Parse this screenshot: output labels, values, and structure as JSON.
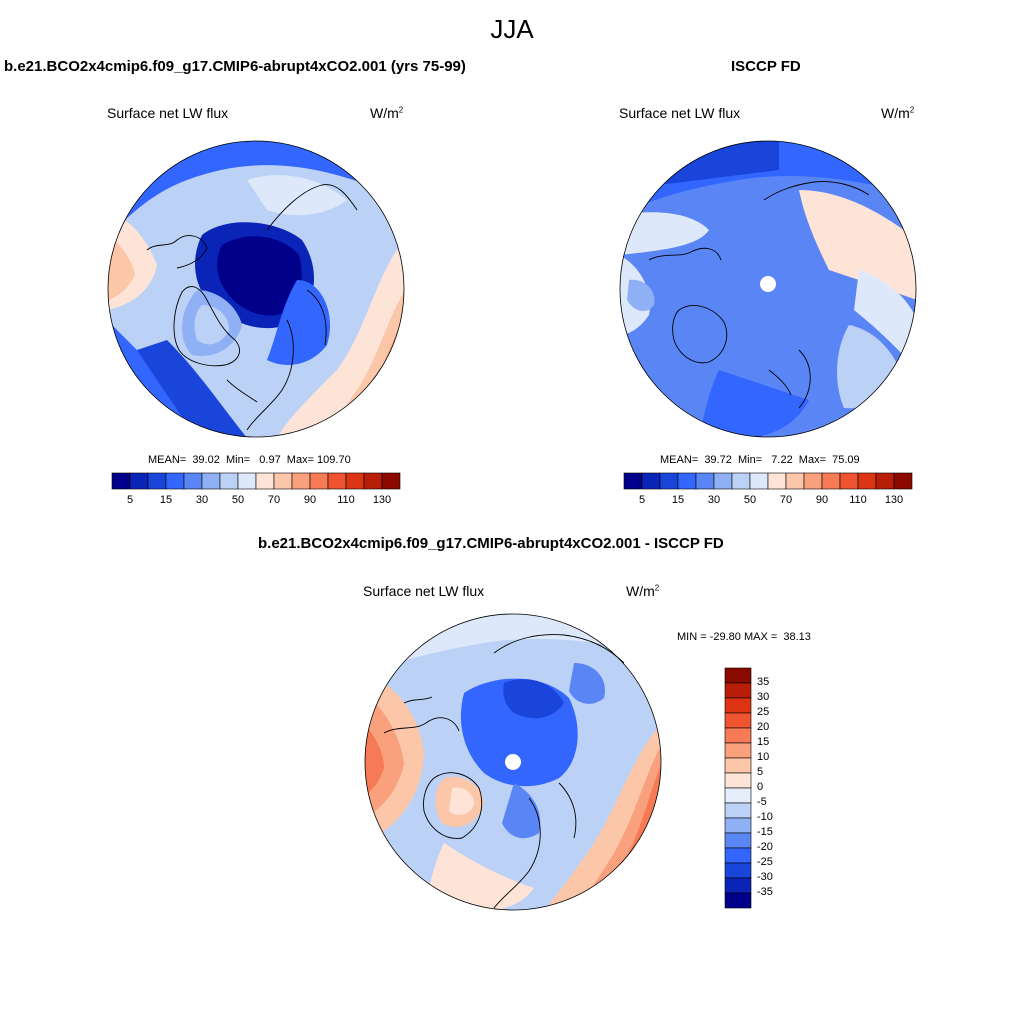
{
  "title": "JJA",
  "panels": [
    {
      "id": "model",
      "title": "b.e21.BCO2x4cmip6.f09_g17.CMIP6-abrupt4xCO2.001 (yrs 75-99)",
      "variable": "Surface net LW flux",
      "units_base": "W/m",
      "units_sup": "2",
      "stats_text": "MEAN=  39.02  Min=   0.97  Max= 109.70",
      "stats": {
        "mean": 39.02,
        "min": 0.97,
        "max": 109.7
      }
    },
    {
      "id": "obs",
      "title": "ISCCP FD",
      "variable": "Surface net LW flux",
      "units_base": "W/m",
      "units_sup": "2",
      "stats_text": "MEAN=  39.72  Min=   7.22  Max=  75.09",
      "stats": {
        "mean": 39.72,
        "min": 7.22,
        "max": 75.09
      }
    },
    {
      "id": "diff",
      "title": "b.e21.BCO2x4cmip6.f09_g17.CMIP6-abrupt4xCO2.001 - ISCCP FD",
      "variable": "Surface net LW flux",
      "units_base": "W/m",
      "units_sup": "2",
      "stats_text": "MIN = -29.80 MAX =  38.13",
      "stats": {
        "min": -29.8,
        "max": 38.13
      }
    }
  ],
  "colorbar_abs": {
    "colors": [
      "#00008b",
      "#0b24b8",
      "#1a45db",
      "#3366ff",
      "#5a86f5",
      "#8fb0f5",
      "#bcd1f6",
      "#dde9fa",
      "#fde4d6",
      "#fcc6a8",
      "#f9a07c",
      "#f57a55",
      "#ef5330",
      "#dd3514",
      "#b81d08",
      "#8b0a00"
    ],
    "tick_labels": [
      "5",
      "15",
      "30",
      "50",
      "70",
      "90",
      "110",
      "130"
    ]
  },
  "colorbar_diff": {
    "colors": [
      "#8b0a00",
      "#b81d08",
      "#dd3514",
      "#ef5330",
      "#f57a55",
      "#f9a07c",
      "#fcc6a8",
      "#fde4d6",
      "#e6eefb",
      "#bcd1f6",
      "#8fb0f5",
      "#5a86f5",
      "#3366ff",
      "#1a45db",
      "#0b24b8",
      "#00008b"
    ],
    "tick_labels": [
      "35",
      "30",
      "25",
      "20",
      "15",
      "10",
      "5",
      "0",
      "-5",
      "-10",
      "-15",
      "-20",
      "-25",
      "-30",
      "-35"
    ]
  }
}
